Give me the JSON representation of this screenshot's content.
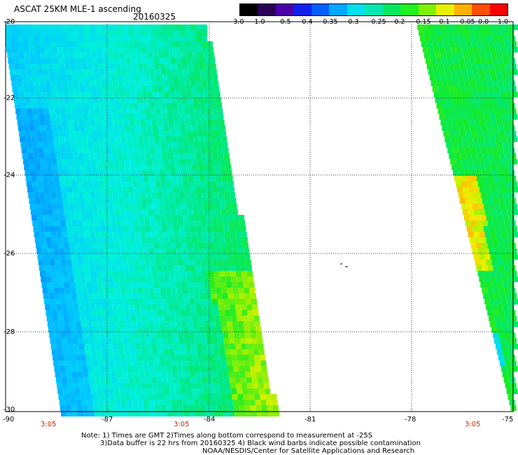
{
  "title": "ASCAT 25KM MLE-1 ascending",
  "date": "20160325",
  "colorbar": {
    "labels": [
      "-3.0",
      "-1.0",
      "-0.5",
      "-0.4",
      "-0.35",
      "-0.3",
      "-0.25",
      "-0.2",
      "-0.15",
      "-0.1",
      "-0.05",
      "0.0",
      "1.0"
    ],
    "colors": [
      "#000000",
      "#2a0055",
      "#4b00a8",
      "#1020e8",
      "#0060ff",
      "#00a8ff",
      "#00e0f0",
      "#00e8b0",
      "#00e860",
      "#20f020",
      "#80f000",
      "#e8f000",
      "#ffb000",
      "#ff5000",
      "#ff0000"
    ]
  },
  "map": {
    "lat_labels": [
      "-20",
      "-22",
      "-24",
      "-26",
      "-28",
      "-30"
    ],
    "lon_labels": [
      "-90",
      "-87",
      "-84",
      "-81",
      "-78",
      "-75"
    ],
    "lat_range": [
      -30,
      -20
    ],
    "lon_range": [
      -90,
      -75
    ],
    "time_labels": [
      "3:05",
      "3:05",
      "3:05"
    ]
  },
  "notes": {
    "line1": "Note: 1) Times are GMT 2)Times along bottom correspond to measurement at -25S",
    "line2": "3)Data buffer is 22 hrs from 20160325 4) Black wind barbs indicate possible contamination",
    "line3": "NOAA/NESDIS/Center for Satellite Applications and Research"
  }
}
